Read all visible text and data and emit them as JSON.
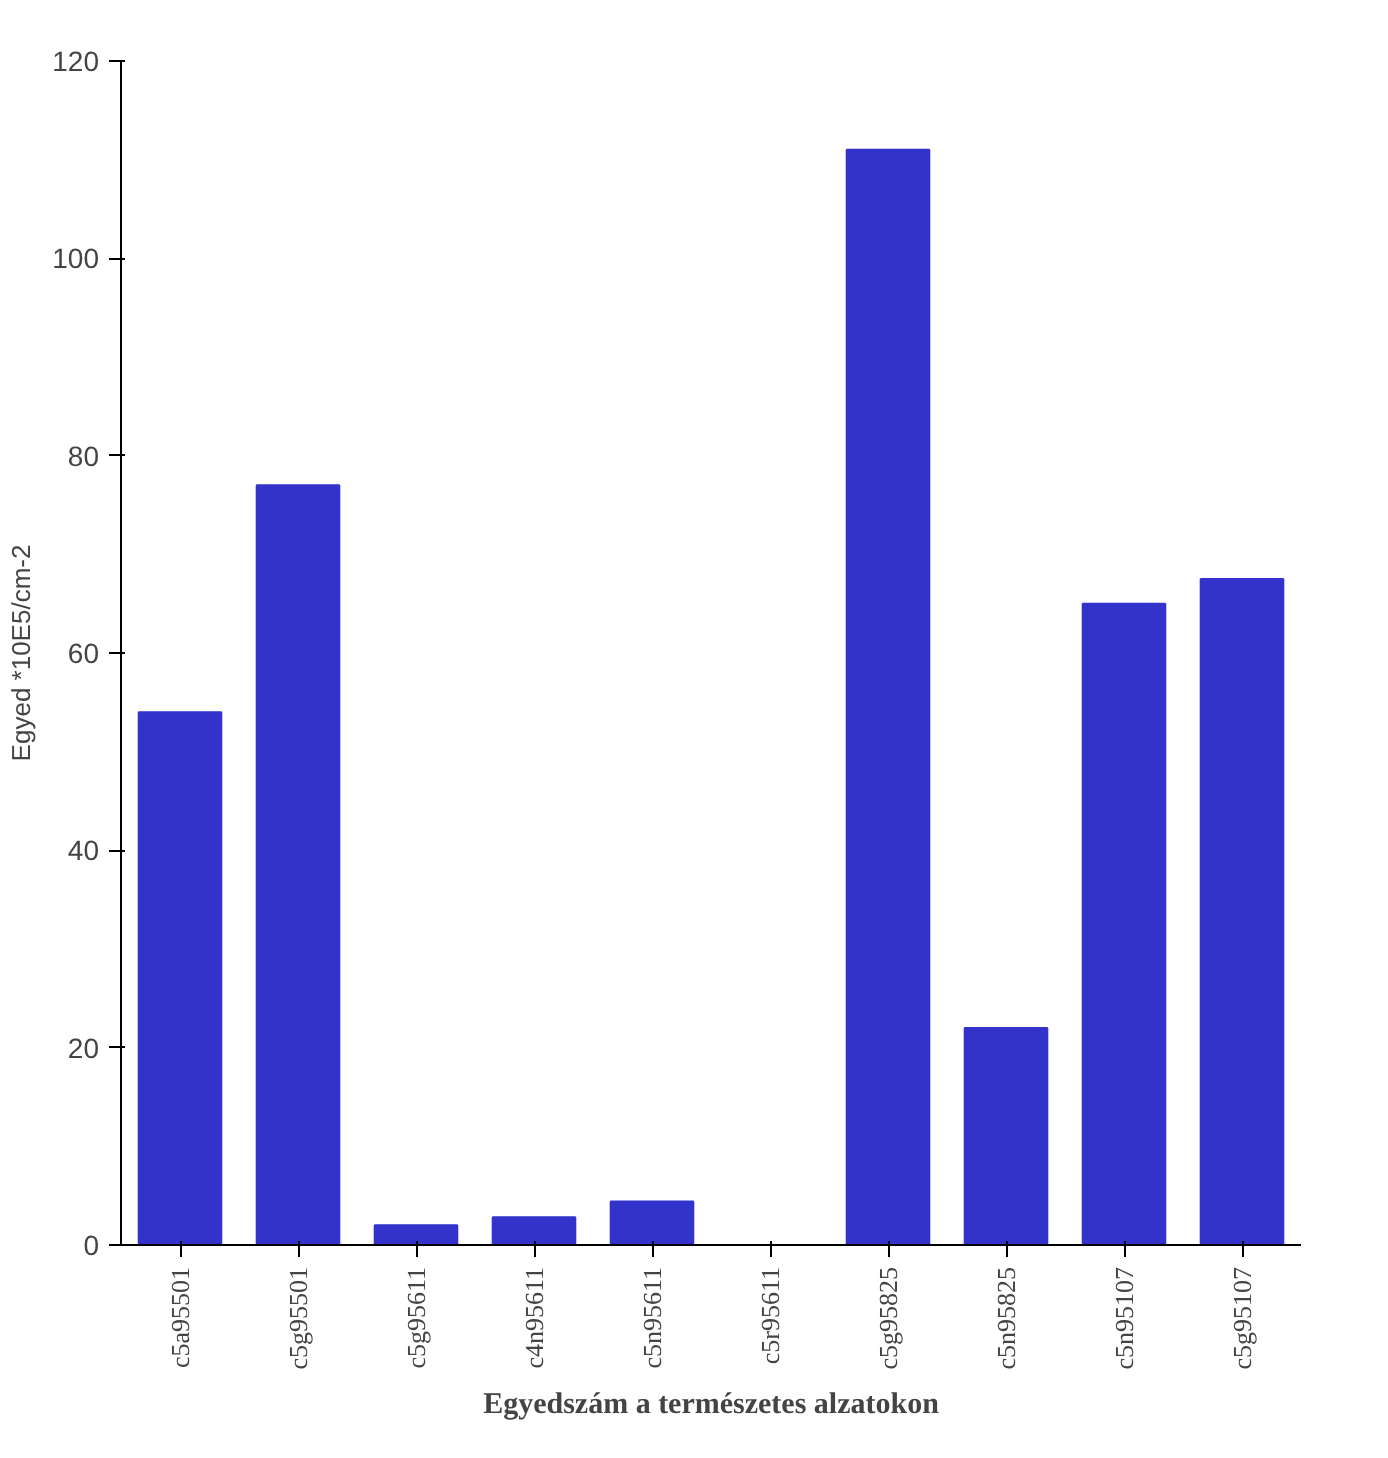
{
  "chart_data": {
    "type": "bar",
    "title": "Egyedszám a természetes alzatokon",
    "ylabel": "Egyed *10E5/cm-2",
    "categories": [
      "c5a95501",
      "c5g95501",
      "c5g95611",
      "c4n95611",
      "c5n95611",
      "c5r95611",
      "c5g95825",
      "c5n95825",
      "c5n95107",
      "c5g95107"
    ],
    "values": [
      54,
      77,
      2,
      2.8,
      4.4,
      0,
      111,
      22,
      65,
      67.5
    ],
    "color": "#3333cc",
    "ylim": [
      0,
      120
    ],
    "yticks": [
      0,
      20,
      40,
      60,
      80,
      100,
      120
    ],
    "grid": false
  }
}
